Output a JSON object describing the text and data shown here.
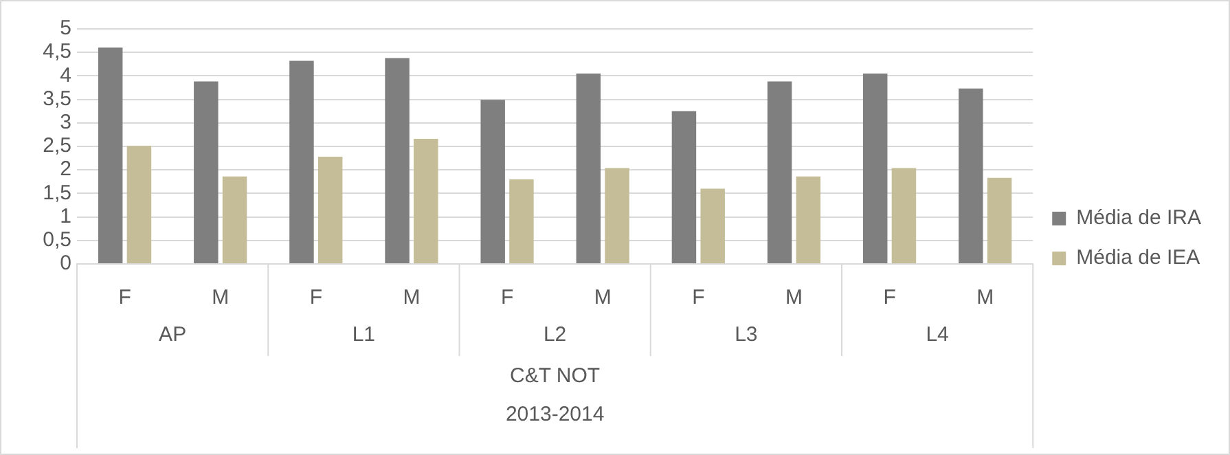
{
  "chart_data": {
    "type": "bar",
    "categories": [
      "F",
      "M",
      "F",
      "M",
      "F",
      "M",
      "F",
      "M",
      "F",
      "M"
    ],
    "series": [
      {
        "name": "Média de IRA",
        "color": "#7f7f7f",
        "values": [
          4.6,
          3.88,
          4.32,
          4.38,
          3.49,
          4.05,
          3.25,
          3.88,
          4.05,
          3.73
        ]
      },
      {
        "name": "Média de IEA",
        "color": "#c4bd97",
        "values": [
          2.51,
          1.86,
          2.28,
          2.66,
          1.8,
          2.04,
          1.6,
          1.86,
          2.04,
          1.83
        ]
      }
    ],
    "annotations": [
      "AP",
      "L1",
      "L2",
      "L3",
      "L4",
      "C&T NOT",
      "2013-2014"
    ],
    "ylim": [
      0,
      5
    ],
    "yticks": [
      0,
      {
        "value": 0.5,
        "label": "0,5"
      },
      1,
      {
        "value": 1.5,
        "label": "1,5"
      },
      2,
      {
        "value": 2.5,
        "label": "2,5"
      },
      3,
      {
        "value": 3.5,
        "label": "3,5"
      },
      4,
      {
        "value": 4.5,
        "label": "4,5"
      },
      5
    ],
    "grid": "y",
    "legend": "right"
  }
}
